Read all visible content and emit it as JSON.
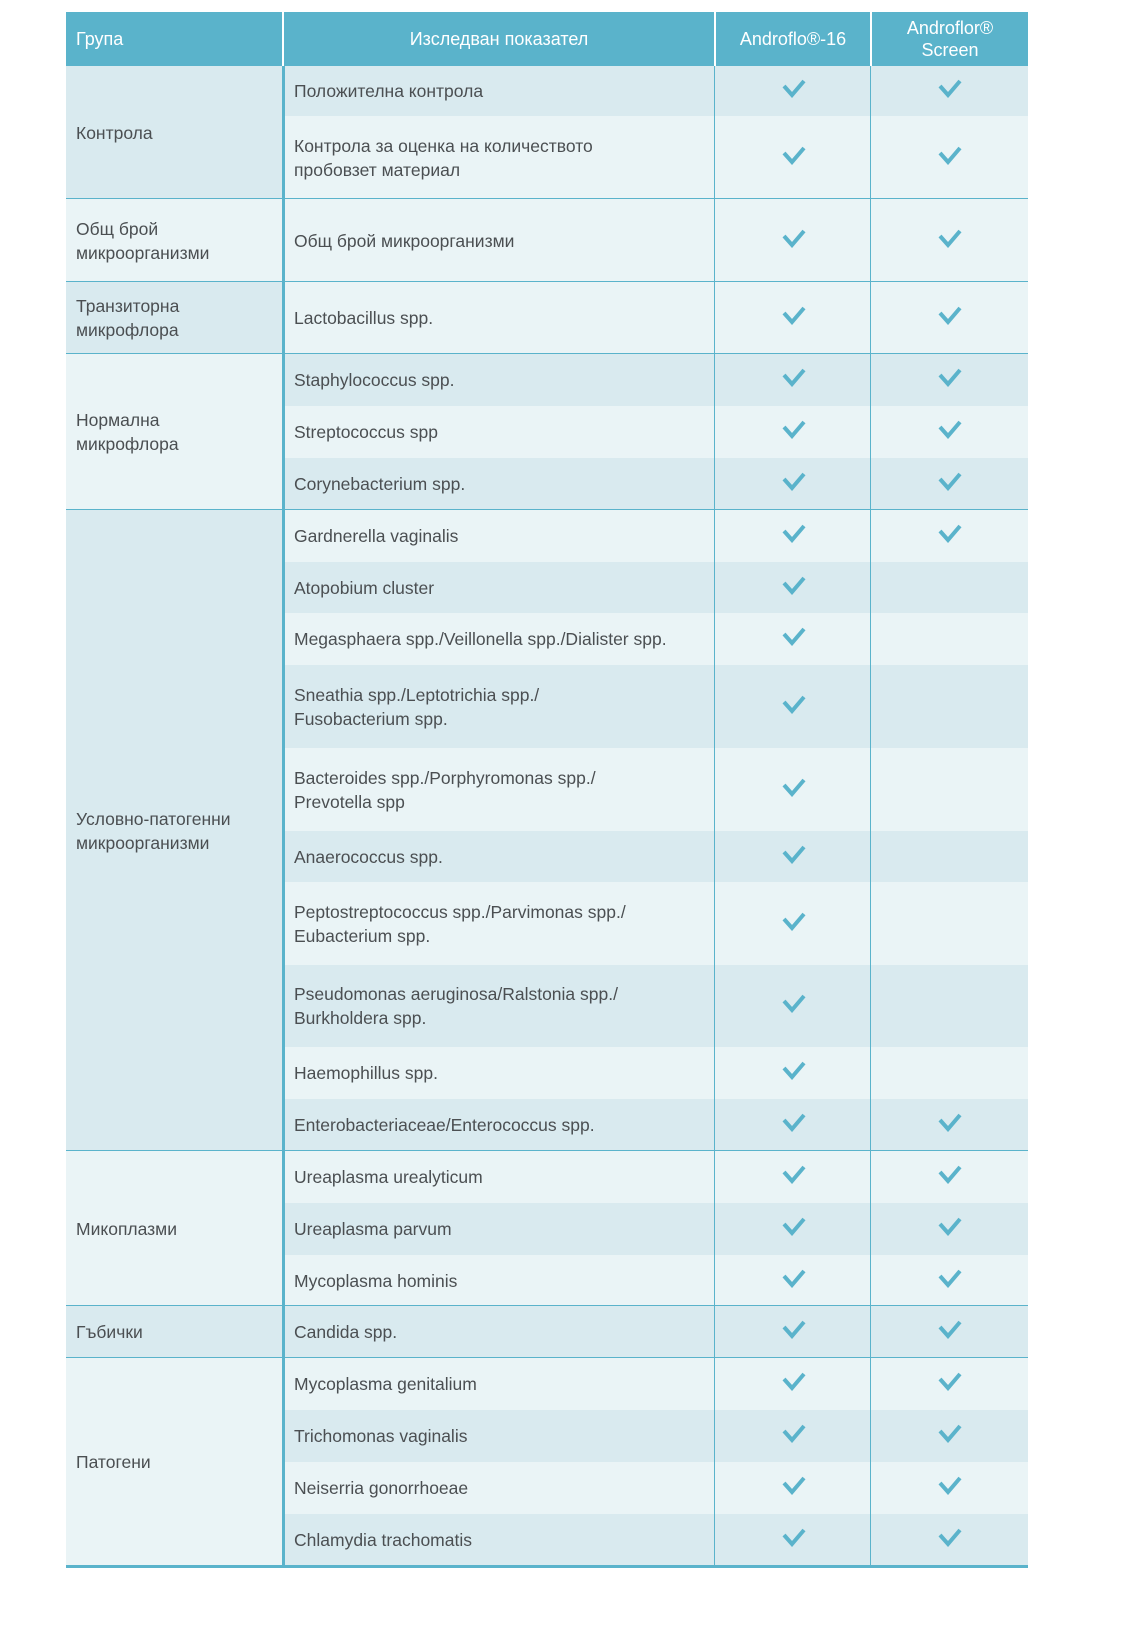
{
  "header": {
    "group": "Група",
    "indicator": "Изследван показател",
    "product1": "Androflo®-16",
    "product2": "Androflor®\nScreen"
  },
  "colors": {
    "accent": "#5ab3cb",
    "row_dark": "#d9eaef",
    "row_light": "#eaf4f6",
    "check": "#5ab3cb"
  },
  "check_icon": "checkmark-icon",
  "groups": [
    {
      "name": "Контрола",
      "rows": [
        {
          "label": "Положителна контрола",
          "androflo16": true,
          "screen": true
        },
        {
          "label": "Контрола за оценка на количеството\nпробовзет материал",
          "androflo16": true,
          "screen": true
        }
      ]
    },
    {
      "name": "Общ брой\nмикроорганизми",
      "rows": [
        {
          "label": "Общ брой микроорганизми",
          "androflo16": true,
          "screen": true
        }
      ]
    },
    {
      "name": "Транзиторна\nмикрофлора",
      "rows": [
        {
          "label": "Lactobacillus spp.",
          "androflo16": true,
          "screen": true
        }
      ]
    },
    {
      "name": "Нормална\nмикрофлора",
      "rows": [
        {
          "label": "Staphylococcus spp.",
          "androflo16": true,
          "screen": true
        },
        {
          "label": "Streptococcus spp",
          "androflo16": true,
          "screen": true
        },
        {
          "label": "Corynebacterium spp.",
          "androflo16": true,
          "screen": true
        }
      ]
    },
    {
      "name": "Условно-патогенни\nмикроорганизми",
      "rows": [
        {
          "label": "Gardnerella vaginalis",
          "androflo16": true,
          "screen": true
        },
        {
          "label": "Atopobium cluster",
          "androflo16": true,
          "screen": false
        },
        {
          "label": "Megasphaera spp./Veillonella spp./Dialister spp.",
          "androflo16": true,
          "screen": false
        },
        {
          "label": "Sneathia spp./Leptotrichia spp./\nFusobacterium spp.",
          "androflo16": true,
          "screen": false
        },
        {
          "label": "Bacteroides spp./Porphyromonas spp./\nPrevotella spp",
          "androflo16": true,
          "screen": false
        },
        {
          "label": "Anaerococcus spp.",
          "androflo16": true,
          "screen": false
        },
        {
          "label": "Peptostreptococcus spp./Parvimonas spp./\nEubacterium spp.",
          "androflo16": true,
          "screen": false
        },
        {
          "label": "Pseudomonas aeruginosa/Ralstonia spp./\nBurkholdera spp.",
          "androflo16": true,
          "screen": false
        },
        {
          "label": "Haemophillus spp.",
          "androflo16": true,
          "screen": false
        },
        {
          "label": "Enterobacteriaceae/Enterococcus spp.",
          "androflo16": true,
          "screen": true
        }
      ]
    },
    {
      "name": "Микоплазми",
      "rows": [
        {
          "label": "Ureaplasma urealyticum",
          "androflo16": true,
          "screen": true
        },
        {
          "label": "Ureaplasma parvum",
          "androflo16": true,
          "screen": true
        },
        {
          "label": "Mycoplasma hominis",
          "androflo16": true,
          "screen": true
        }
      ]
    },
    {
      "name": "Гъбички",
      "rows": [
        {
          "label": "Candida spp.",
          "androflo16": true,
          "screen": true
        }
      ]
    },
    {
      "name": "Патогени",
      "rows": [
        {
          "label": "Mycoplasma genitalium",
          "androflo16": true,
          "screen": true
        },
        {
          "label": "Trichomonas vaginalis",
          "androflo16": true,
          "screen": true
        },
        {
          "label": "Neiserria gonorrhoeae",
          "androflo16": true,
          "screen": true
        },
        {
          "label": "Chlamydia trachomatis",
          "androflo16": true,
          "screen": true
        }
      ]
    }
  ]
}
